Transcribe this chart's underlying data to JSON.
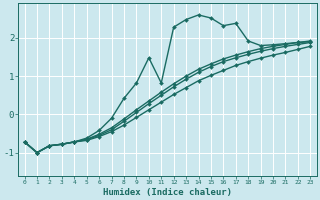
{
  "xlabel": "Humidex (Indice chaleur)",
  "ylabel": "",
  "bg_color": "#cce8ee",
  "grid_color": "#ffffff",
  "line_color": "#1a6b62",
  "xlim": [
    -0.5,
    23.5
  ],
  "ylim": [
    -1.6,
    2.9
  ],
  "xticks": [
    0,
    1,
    2,
    3,
    4,
    5,
    6,
    7,
    8,
    9,
    10,
    11,
    12,
    13,
    14,
    15,
    16,
    17,
    18,
    19,
    20,
    21,
    22,
    23
  ],
  "yticks": [
    -1,
    0,
    1,
    2
  ],
  "series": [
    {
      "x": [
        0,
        1,
        2,
        3,
        4,
        5,
        6,
        7,
        8,
        9,
        10,
        11,
        12,
        13,
        14,
        15,
        16,
        17,
        18,
        19,
        20,
        21,
        22,
        23
      ],
      "y": [
        -0.72,
        -1.0,
        -0.82,
        -0.78,
        -0.72,
        -0.68,
        -0.58,
        -0.45,
        -0.28,
        -0.08,
        0.12,
        0.32,
        0.52,
        0.7,
        0.88,
        1.02,
        1.15,
        1.28,
        1.38,
        1.47,
        1.55,
        1.62,
        1.7,
        1.78
      ]
    },
    {
      "x": [
        0,
        1,
        2,
        3,
        4,
        5,
        6,
        7,
        8,
        9,
        10,
        11,
        12,
        13,
        14,
        15,
        16,
        17,
        18,
        19,
        20,
        21,
        22,
        23
      ],
      "y": [
        -0.72,
        -1.0,
        -0.82,
        -0.78,
        -0.72,
        -0.65,
        -0.52,
        -0.35,
        -0.12,
        0.12,
        0.35,
        0.58,
        0.8,
        1.0,
        1.18,
        1.32,
        1.45,
        1.55,
        1.64,
        1.72,
        1.78,
        1.83,
        1.88,
        1.92
      ]
    },
    {
      "x": [
        0,
        1,
        2,
        3,
        4,
        5,
        6,
        7,
        8,
        9,
        10,
        11,
        12,
        13,
        14,
        15,
        16,
        17,
        18,
        19,
        20,
        21,
        22,
        23
      ],
      "y": [
        -0.72,
        -1.0,
        -0.82,
        -0.78,
        -0.72,
        -0.62,
        -0.42,
        -0.1,
        0.42,
        0.82,
        1.48,
        0.82,
        2.28,
        2.48,
        2.6,
        2.52,
        2.32,
        2.38,
        1.92,
        1.8,
        1.82,
        1.85,
        1.88,
        1.9
      ]
    },
    {
      "x": [
        0,
        1,
        2,
        3,
        4,
        5,
        6,
        7,
        8,
        9,
        10,
        11,
        12,
        13,
        14,
        15,
        16,
        17,
        18,
        19,
        20,
        21,
        22,
        23
      ],
      "y": [
        -0.72,
        -1.0,
        -0.82,
        -0.78,
        -0.72,
        -0.66,
        -0.55,
        -0.4,
        -0.18,
        0.05,
        0.28,
        0.5,
        0.72,
        0.92,
        1.1,
        1.25,
        1.38,
        1.48,
        1.57,
        1.65,
        1.72,
        1.78,
        1.83,
        1.88
      ]
    }
  ],
  "marker": "D",
  "markersize": 2.0,
  "linewidth": 1.0
}
